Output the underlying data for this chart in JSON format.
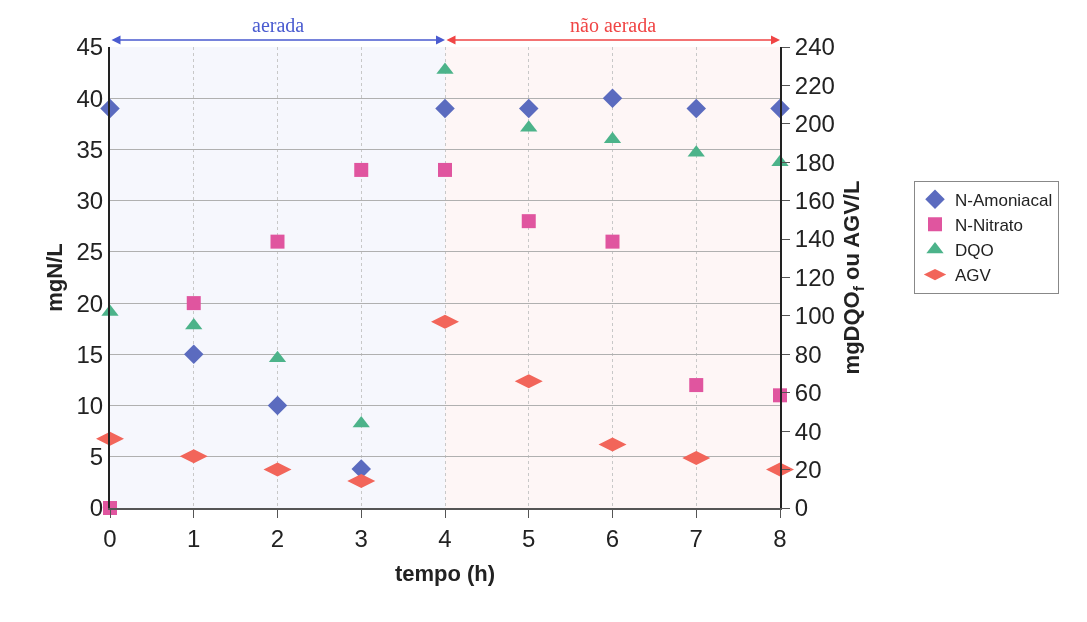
{
  "chart_data": {
    "type": "scatter",
    "xlabel": "tempo (h)",
    "ylabel": "mgN/L",
    "y2label": "mgDQO$_{f}$ ou AGV/L",
    "x": [
      0,
      1,
      2,
      3,
      4,
      5,
      6,
      7,
      8
    ],
    "series": [
      {
        "name": "N-Amoniacal",
        "color": "#5b6bbf",
        "marker": "diamond",
        "values": [
          39,
          15,
          10,
          3.8,
          39,
          39,
          40,
          39,
          39
        ]
      },
      {
        "name": "N-Nitrato",
        "color": "#e0559f",
        "marker": "square",
        "values": [
          0,
          20,
          26,
          33,
          33,
          28,
          26,
          12,
          11
        ]
      },
      {
        "name": "DQO",
        "color": "#4cb38a",
        "marker": "triangle",
        "axis": "y2",
        "values": [
          102,
          95,
          78,
          44,
          228,
          198,
          192,
          185,
          180
        ]
      },
      {
        "name": "AGV",
        "color": "#f2655a",
        "axis": "y2",
        "values": [
          36,
          27,
          20,
          14,
          97,
          66,
          33,
          26,
          20
        ]
      }
    ],
    "xlim": [
      0,
      8
    ],
    "xticks": [
      0,
      1,
      2,
      3,
      4,
      5,
      6,
      7,
      8
    ],
    "ylim": [
      0,
      45
    ],
    "yticks": [
      0,
      5,
      10,
      15,
      20,
      25,
      30,
      35,
      40,
      45
    ],
    "y2lim": [
      0,
      240
    ],
    "y2ticks": [
      0,
      20,
      40,
      60,
      80,
      100,
      120,
      140,
      160,
      180,
      200,
      220,
      240
    ],
    "bands": [
      {
        "axis": "x",
        "from": 0,
        "to": 4,
        "label": "aerada",
        "color": "#4a5bd0"
      },
      {
        "axis": "x",
        "from": 4,
        "to": 8,
        "label": "não aerada",
        "color": "#f04545"
      }
    ],
    "grid": true,
    "legend": "right"
  }
}
